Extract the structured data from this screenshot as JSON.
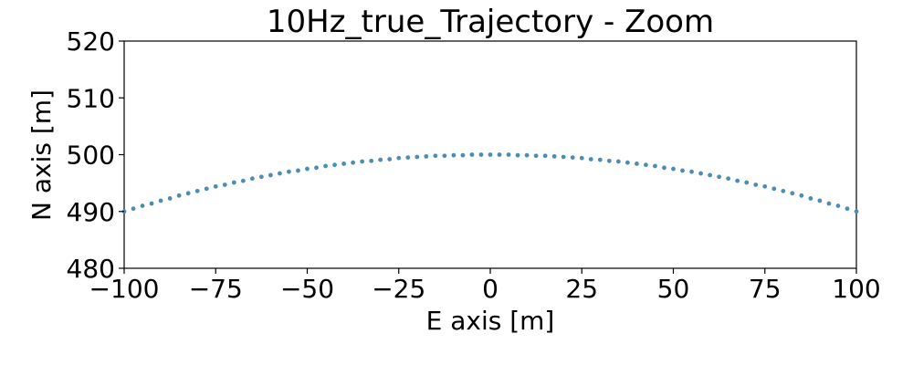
{
  "chart_data": {
    "type": "scatter",
    "title": "10Hz_true_Trajectory - Zoom",
    "xlabel": "E axis [m]",
    "ylabel": "N axis [m]",
    "xlim": [
      -100,
      100
    ],
    "ylim": [
      480,
      520
    ],
    "xticks": [
      -100,
      -75,
      -50,
      -25,
      0,
      25,
      50,
      75,
      100
    ],
    "xtick_labels": [
      "−100",
      "−75",
      "−50",
      "−25",
      "0",
      "25",
      "50",
      "75",
      "100"
    ],
    "yticks": [
      480,
      490,
      500,
      510,
      520
    ],
    "ytick_labels": [
      "480",
      "490",
      "500",
      "510",
      "520"
    ],
    "grid": false,
    "legend": "none",
    "marker_color": "#4c8db3",
    "series": [
      {
        "x_start": -100,
        "x_end": 100,
        "x_step": 2.5,
        "y_formula_note_removed": true,
        "points": [
          [
            -100,
            490.0
          ],
          [
            -97.5,
            490.5
          ],
          [
            -95,
            491.0
          ],
          [
            -92.5,
            491.4
          ],
          [
            -90,
            491.9
          ],
          [
            -87.5,
            492.3
          ],
          [
            -85,
            492.8
          ],
          [
            -82.5,
            493.2
          ],
          [
            -80,
            493.6
          ],
          [
            -77.5,
            494.0
          ],
          [
            -75,
            494.4
          ],
          [
            -72.5,
            494.7
          ],
          [
            -70,
            495.1
          ],
          [
            -67.5,
            495.4
          ],
          [
            -65,
            495.8
          ],
          [
            -62.5,
            496.1
          ],
          [
            -60,
            496.4
          ],
          [
            -57.5,
            496.7
          ],
          [
            -55,
            497.0
          ],
          [
            -52.5,
            497.2
          ],
          [
            -50,
            497.5
          ],
          [
            -47.5,
            497.7
          ],
          [
            -45,
            498.0
          ],
          [
            -42.5,
            498.2
          ],
          [
            -40,
            498.4
          ],
          [
            -37.5,
            498.6
          ],
          [
            -35,
            498.8
          ],
          [
            -32.5,
            498.9
          ],
          [
            -30,
            499.1
          ],
          [
            -27.5,
            499.2
          ],
          [
            -25,
            499.4
          ],
          [
            -22.5,
            499.5
          ],
          [
            -20,
            499.6
          ],
          [
            -17.5,
            499.7
          ],
          [
            -15,
            499.8
          ],
          [
            -12.5,
            499.8
          ],
          [
            -10,
            499.9
          ],
          [
            -7.5,
            499.9
          ],
          [
            -5,
            500.0
          ],
          [
            -2.5,
            500.0
          ],
          [
            0,
            500.0
          ],
          [
            2.5,
            500.0
          ],
          [
            5,
            500.0
          ],
          [
            7.5,
            499.9
          ],
          [
            10,
            499.9
          ],
          [
            12.5,
            499.8
          ],
          [
            15,
            499.8
          ],
          [
            17.5,
            499.7
          ],
          [
            20,
            499.6
          ],
          [
            22.5,
            499.5
          ],
          [
            25,
            499.4
          ],
          [
            27.5,
            499.2
          ],
          [
            30,
            499.1
          ],
          [
            32.5,
            498.9
          ],
          [
            35,
            498.8
          ],
          [
            37.5,
            498.6
          ],
          [
            40,
            498.4
          ],
          [
            42.5,
            498.2
          ],
          [
            45,
            498.0
          ],
          [
            47.5,
            497.7
          ],
          [
            50,
            497.5
          ],
          [
            52.5,
            497.2
          ],
          [
            55,
            497.0
          ],
          [
            57.5,
            496.7
          ],
          [
            60,
            496.4
          ],
          [
            62.5,
            496.1
          ],
          [
            65,
            495.8
          ],
          [
            67.5,
            495.4
          ],
          [
            70,
            495.1
          ],
          [
            72.5,
            494.7
          ],
          [
            75,
            494.4
          ],
          [
            77.5,
            494.0
          ],
          [
            80,
            493.6
          ],
          [
            82.5,
            493.2
          ],
          [
            85,
            492.8
          ],
          [
            87.5,
            492.3
          ],
          [
            90,
            491.9
          ],
          [
            92.5,
            491.4
          ],
          [
            95,
            491.0
          ],
          [
            97.5,
            490.5
          ],
          [
            100,
            490.0
          ]
        ]
      }
    ]
  }
}
